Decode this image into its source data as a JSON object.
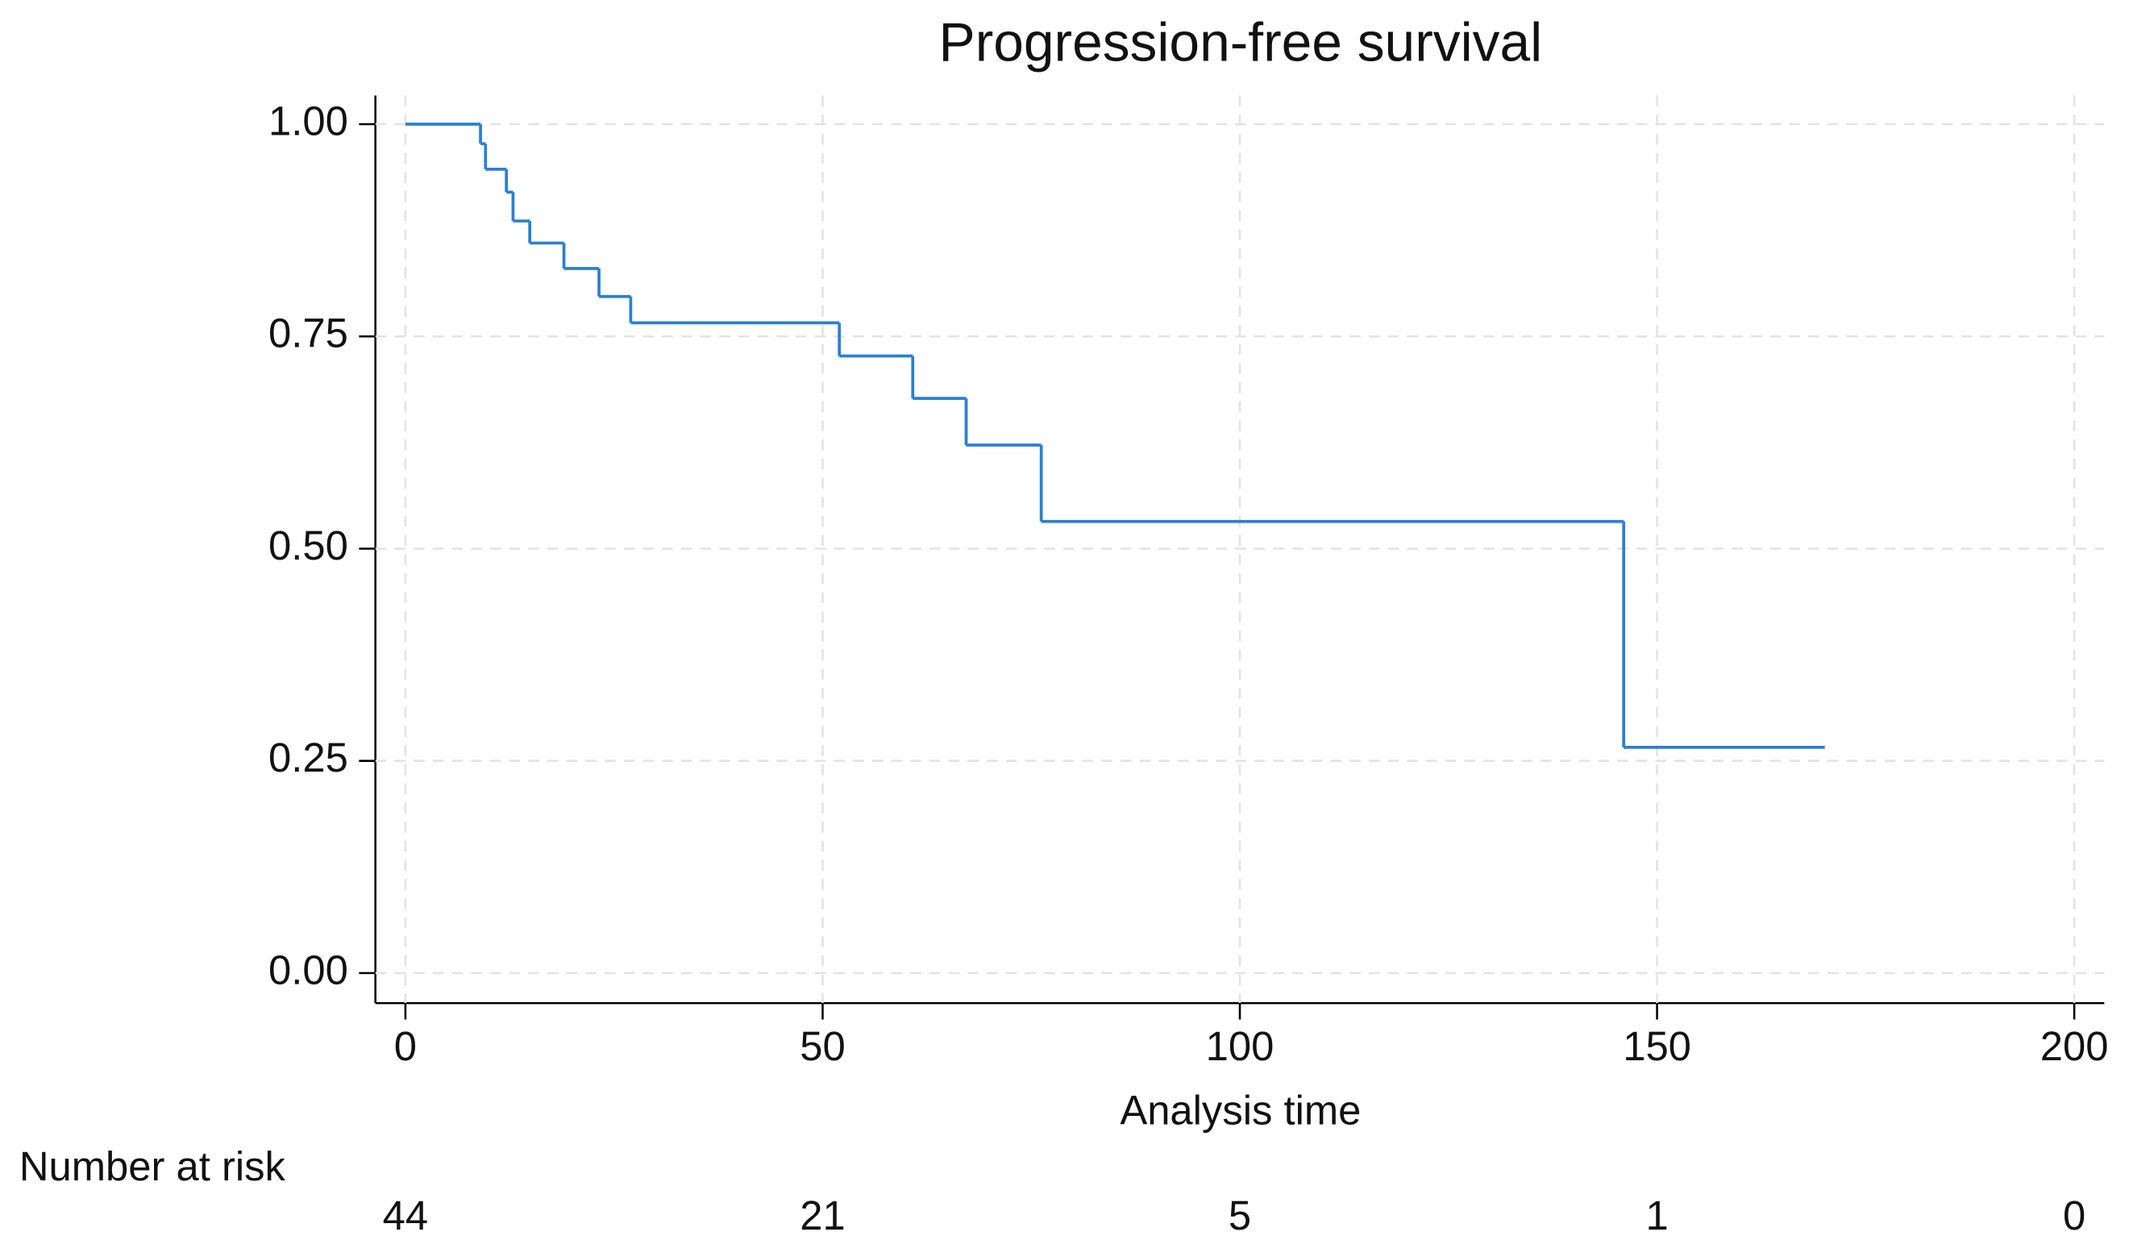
{
  "chart_data": {
    "type": "step",
    "title": "Progression-free survival",
    "x_label": "Analysis time",
    "series": [
      {
        "color": "#2b7fd4",
        "x": [
          0,
          9.0,
          9.6,
          12.1,
          12.9,
          14.9,
          19.0,
          23.2,
          27.0,
          52.0,
          60.8,
          67.2,
          76.2,
          146.0,
          170.1
        ],
        "values": [
          1.0,
          0.977,
          0.947,
          0.92,
          0.886,
          0.86,
          0.83,
          0.797,
          0.766,
          0.727,
          0.677,
          0.622,
          0.532,
          0.266,
          0.266
        ]
      }
    ],
    "xlim": [
      0,
      200
    ],
    "xticks": [
      0,
      50,
      100,
      150,
      200
    ],
    "ylim": [
      0,
      1
    ],
    "yticks": [
      {
        "value": 0,
        "label": "0.00"
      },
      {
        "value": 0.25,
        "label": "0.25"
      },
      {
        "value": 0.5,
        "label": "0.50"
      },
      {
        "value": 0.75,
        "label": "0.75"
      },
      {
        "value": 1,
        "label": "1.00"
      }
    ],
    "grid": true,
    "risk_table": {
      "title": "Number at risk",
      "values": [
        44,
        21,
        5,
        1,
        0
      ]
    }
  }
}
